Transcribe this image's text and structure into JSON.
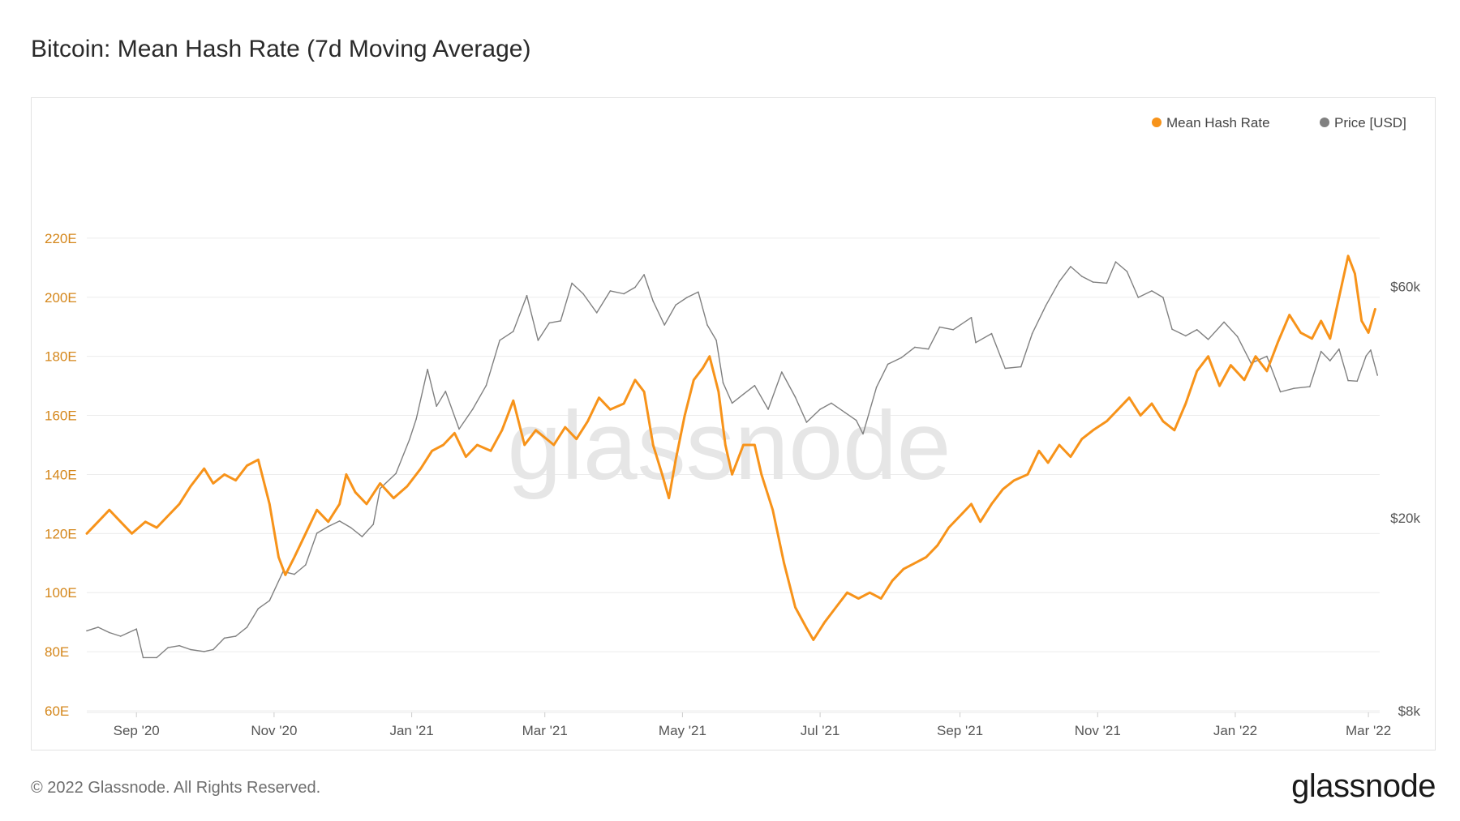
{
  "title": "Bitcoin: Mean Hash Rate (7d Moving Average)",
  "footer": {
    "copyright": "© 2022 Glassnode. All Rights Reserved.",
    "logo": "glassnode"
  },
  "watermark": "glassnode",
  "colors": {
    "hash_rate": "#f7931a",
    "price": "#808080",
    "grid": "#ececec",
    "left_axis_text": "#d4861a"
  },
  "chart_data": {
    "type": "line",
    "legend": [
      {
        "name": "Mean Hash Rate",
        "color": "#f7931a"
      },
      {
        "name": "Price [USD]",
        "color": "#808080"
      }
    ],
    "legend_position": "top-right",
    "grid": true,
    "x_range": [
      "2020-08-10",
      "2022-03-06"
    ],
    "x_ticks": [
      {
        "label": "Sep '20",
        "date": "2020-09-01"
      },
      {
        "label": "Nov '20",
        "date": "2020-11-01"
      },
      {
        "label": "Jan '21",
        "date": "2021-01-01"
      },
      {
        "label": "Mar '21",
        "date": "2021-03-01"
      },
      {
        "label": "May '21",
        "date": "2021-05-01"
      },
      {
        "label": "Jul '21",
        "date": "2021-07-01"
      },
      {
        "label": "Sep '21",
        "date": "2021-09-01"
      },
      {
        "label": "Nov '21",
        "date": "2021-11-01"
      },
      {
        "label": "Jan '22",
        "date": "2022-01-01"
      },
      {
        "label": "Mar '22",
        "date": "2022-03-01"
      }
    ],
    "y_left": {
      "unit": "EH/s",
      "range": [
        60,
        240
      ],
      "ticks": [
        {
          "label": "60E",
          "value": 60
        },
        {
          "label": "80E",
          "value": 80
        },
        {
          "label": "100E",
          "value": 100
        },
        {
          "label": "120E",
          "value": 120
        },
        {
          "label": "140E",
          "value": 140
        },
        {
          "label": "160E",
          "value": 160
        },
        {
          "label": "180E",
          "value": 180
        },
        {
          "label": "200E",
          "value": 200
        },
        {
          "label": "220E",
          "value": 220
        }
      ]
    },
    "y_right": {
      "scale": "log",
      "range": [
        8000,
        100000
      ],
      "ticks": [
        {
          "label": "$8k",
          "value": 8000
        },
        {
          "label": "$20k",
          "value": 20000
        },
        {
          "label": "$60k",
          "value": 60000
        }
      ]
    },
    "series": [
      {
        "name": "Mean Hash Rate",
        "axis": "left",
        "points": [
          [
            "2020-08-10",
            120
          ],
          [
            "2020-08-15",
            124
          ],
          [
            "2020-08-20",
            128
          ],
          [
            "2020-08-25",
            124
          ],
          [
            "2020-08-30",
            120
          ],
          [
            "2020-09-05",
            124
          ],
          [
            "2020-09-10",
            122
          ],
          [
            "2020-09-15",
            126
          ],
          [
            "2020-09-20",
            130
          ],
          [
            "2020-09-25",
            136
          ],
          [
            "2020-10-01",
            142
          ],
          [
            "2020-10-05",
            137
          ],
          [
            "2020-10-10",
            140
          ],
          [
            "2020-10-15",
            138
          ],
          [
            "2020-10-20",
            143
          ],
          [
            "2020-10-25",
            145
          ],
          [
            "2020-10-30",
            130
          ],
          [
            "2020-11-03",
            112
          ],
          [
            "2020-11-06",
            106
          ],
          [
            "2020-11-10",
            112
          ],
          [
            "2020-11-15",
            120
          ],
          [
            "2020-11-20",
            128
          ],
          [
            "2020-11-25",
            124
          ],
          [
            "2020-11-30",
            130
          ],
          [
            "2020-12-03",
            140
          ],
          [
            "2020-12-07",
            134
          ],
          [
            "2020-12-12",
            130
          ],
          [
            "2020-12-18",
            137
          ],
          [
            "2020-12-24",
            132
          ],
          [
            "2020-12-30",
            136
          ],
          [
            "2021-01-05",
            142
          ],
          [
            "2021-01-10",
            148
          ],
          [
            "2021-01-15",
            150
          ],
          [
            "2021-01-20",
            154
          ],
          [
            "2021-01-25",
            146
          ],
          [
            "2021-01-30",
            150
          ],
          [
            "2021-02-05",
            148
          ],
          [
            "2021-02-10",
            155
          ],
          [
            "2021-02-15",
            165
          ],
          [
            "2021-02-20",
            150
          ],
          [
            "2021-02-25",
            155
          ],
          [
            "2021-03-05",
            150
          ],
          [
            "2021-03-10",
            156
          ],
          [
            "2021-03-15",
            152
          ],
          [
            "2021-03-20",
            158
          ],
          [
            "2021-03-25",
            166
          ],
          [
            "2021-03-30",
            162
          ],
          [
            "2021-04-05",
            164
          ],
          [
            "2021-04-10",
            172
          ],
          [
            "2021-04-14",
            168
          ],
          [
            "2021-04-18",
            150
          ],
          [
            "2021-04-22",
            140
          ],
          [
            "2021-04-25",
            132
          ],
          [
            "2021-04-28",
            145
          ],
          [
            "2021-05-02",
            160
          ],
          [
            "2021-05-06",
            172
          ],
          [
            "2021-05-10",
            176
          ],
          [
            "2021-05-13",
            180
          ],
          [
            "2021-05-17",
            168
          ],
          [
            "2021-05-20",
            150
          ],
          [
            "2021-05-23",
            140
          ],
          [
            "2021-05-28",
            150
          ],
          [
            "2021-06-02",
            150
          ],
          [
            "2021-06-05",
            140
          ],
          [
            "2021-06-10",
            128
          ],
          [
            "2021-06-15",
            110
          ],
          [
            "2021-06-20",
            95
          ],
          [
            "2021-06-25",
            88
          ],
          [
            "2021-06-28",
            84
          ],
          [
            "2021-07-03",
            90
          ],
          [
            "2021-07-08",
            95
          ],
          [
            "2021-07-13",
            100
          ],
          [
            "2021-07-18",
            98
          ],
          [
            "2021-07-23",
            100
          ],
          [
            "2021-07-28",
            98
          ],
          [
            "2021-08-02",
            104
          ],
          [
            "2021-08-07",
            108
          ],
          [
            "2021-08-12",
            110
          ],
          [
            "2021-08-17",
            112
          ],
          [
            "2021-08-22",
            116
          ],
          [
            "2021-08-27",
            122
          ],
          [
            "2021-09-01",
            126
          ],
          [
            "2021-09-06",
            130
          ],
          [
            "2021-09-10",
            124
          ],
          [
            "2021-09-15",
            130
          ],
          [
            "2021-09-20",
            135
          ],
          [
            "2021-09-25",
            138
          ],
          [
            "2021-10-01",
            140
          ],
          [
            "2021-10-06",
            148
          ],
          [
            "2021-10-10",
            144
          ],
          [
            "2021-10-15",
            150
          ],
          [
            "2021-10-20",
            146
          ],
          [
            "2021-10-25",
            152
          ],
          [
            "2021-10-30",
            155
          ],
          [
            "2021-11-05",
            158
          ],
          [
            "2021-11-10",
            162
          ],
          [
            "2021-11-15",
            166
          ],
          [
            "2021-11-20",
            160
          ],
          [
            "2021-11-25",
            164
          ],
          [
            "2021-11-30",
            158
          ],
          [
            "2021-12-05",
            155
          ],
          [
            "2021-12-10",
            164
          ],
          [
            "2021-12-15",
            175
          ],
          [
            "2021-12-20",
            180
          ],
          [
            "2021-12-25",
            170
          ],
          [
            "2021-12-30",
            177
          ],
          [
            "2022-01-05",
            172
          ],
          [
            "2022-01-10",
            180
          ],
          [
            "2022-01-15",
            175
          ],
          [
            "2022-01-20",
            185
          ],
          [
            "2022-01-25",
            194
          ],
          [
            "2022-01-30",
            188
          ],
          [
            "2022-02-04",
            186
          ],
          [
            "2022-02-08",
            192
          ],
          [
            "2022-02-12",
            186
          ],
          [
            "2022-02-16",
            200
          ],
          [
            "2022-02-20",
            214
          ],
          [
            "2022-02-23",
            208
          ],
          [
            "2022-02-26",
            192
          ],
          [
            "2022-03-01",
            188
          ],
          [
            "2022-03-04",
            196
          ]
        ]
      },
      {
        "name": "Price [USD]",
        "axis": "right",
        "points": [
          [
            "2020-08-10",
            11700
          ],
          [
            "2020-08-15",
            11900
          ],
          [
            "2020-08-20",
            11600
          ],
          [
            "2020-08-25",
            11400
          ],
          [
            "2020-09-01",
            11800
          ],
          [
            "2020-09-04",
            10300
          ],
          [
            "2020-09-10",
            10300
          ],
          [
            "2020-09-15",
            10800
          ],
          [
            "2020-09-20",
            10900
          ],
          [
            "2020-09-25",
            10700
          ],
          [
            "2020-10-01",
            10600
          ],
          [
            "2020-10-05",
            10700
          ],
          [
            "2020-10-10",
            11300
          ],
          [
            "2020-10-15",
            11400
          ],
          [
            "2020-10-20",
            11900
          ],
          [
            "2020-10-25",
            13000
          ],
          [
            "2020-10-30",
            13500
          ],
          [
            "2020-11-05",
            15500
          ],
          [
            "2020-11-10",
            15300
          ],
          [
            "2020-11-15",
            16000
          ],
          [
            "2020-11-20",
            18600
          ],
          [
            "2020-11-25",
            19200
          ],
          [
            "2020-11-30",
            19700
          ],
          [
            "2020-12-05",
            19100
          ],
          [
            "2020-12-10",
            18300
          ],
          [
            "2020-12-15",
            19400
          ],
          [
            "2020-12-18",
            23000
          ],
          [
            "2020-12-25",
            24700
          ],
          [
            "2020-12-31",
            29000
          ],
          [
            "2021-01-03",
            32000
          ],
          [
            "2021-01-08",
            40500
          ],
          [
            "2021-01-12",
            34000
          ],
          [
            "2021-01-16",
            36500
          ],
          [
            "2021-01-22",
            30500
          ],
          [
            "2021-01-28",
            33500
          ],
          [
            "2021-02-03",
            37500
          ],
          [
            "2021-02-09",
            46500
          ],
          [
            "2021-02-15",
            48500
          ],
          [
            "2021-02-21",
            57500
          ],
          [
            "2021-02-26",
            46500
          ],
          [
            "2021-03-03",
            50500
          ],
          [
            "2021-03-08",
            51000
          ],
          [
            "2021-03-13",
            61000
          ],
          [
            "2021-03-18",
            58000
          ],
          [
            "2021-03-24",
            53000
          ],
          [
            "2021-03-30",
            58800
          ],
          [
            "2021-04-05",
            58000
          ],
          [
            "2021-04-10",
            59800
          ],
          [
            "2021-04-14",
            63500
          ],
          [
            "2021-04-18",
            56000
          ],
          [
            "2021-04-23",
            50000
          ],
          [
            "2021-04-28",
            55000
          ],
          [
            "2021-05-03",
            57000
          ],
          [
            "2021-05-08",
            58500
          ],
          [
            "2021-05-12",
            50000
          ],
          [
            "2021-05-16",
            46500
          ],
          [
            "2021-05-19",
            38000
          ],
          [
            "2021-05-23",
            34500
          ],
          [
            "2021-05-28",
            36000
          ],
          [
            "2021-06-02",
            37500
          ],
          [
            "2021-06-08",
            33500
          ],
          [
            "2021-06-14",
            40000
          ],
          [
            "2021-06-20",
            35500
          ],
          [
            "2021-06-25",
            31500
          ],
          [
            "2021-07-01",
            33500
          ],
          [
            "2021-07-06",
            34500
          ],
          [
            "2021-07-12",
            33000
          ],
          [
            "2021-07-17",
            31800
          ],
          [
            "2021-07-20",
            29800
          ],
          [
            "2021-07-26",
            37200
          ],
          [
            "2021-07-31",
            41500
          ],
          [
            "2021-08-06",
            42800
          ],
          [
            "2021-08-12",
            45000
          ],
          [
            "2021-08-18",
            44600
          ],
          [
            "2021-08-23",
            49500
          ],
          [
            "2021-08-29",
            48900
          ],
          [
            "2021-09-06",
            51800
          ],
          [
            "2021-09-08",
            46000
          ],
          [
            "2021-09-15",
            48000
          ],
          [
            "2021-09-21",
            40700
          ],
          [
            "2021-09-28",
            41000
          ],
          [
            "2021-10-03",
            48000
          ],
          [
            "2021-10-09",
            54800
          ],
          [
            "2021-10-15",
            61500
          ],
          [
            "2021-10-20",
            66000
          ],
          [
            "2021-10-25",
            63000
          ],
          [
            "2021-10-30",
            61300
          ],
          [
            "2021-11-05",
            61000
          ],
          [
            "2021-11-09",
            67500
          ],
          [
            "2021-11-14",
            64500
          ],
          [
            "2021-11-19",
            57000
          ],
          [
            "2021-11-25",
            58800
          ],
          [
            "2021-11-30",
            57000
          ],
          [
            "2021-12-04",
            49000
          ],
          [
            "2021-12-10",
            47500
          ],
          [
            "2021-12-15",
            48900
          ],
          [
            "2021-12-20",
            46700
          ],
          [
            "2021-12-27",
            50700
          ],
          [
            "2022-01-02",
            47300
          ],
          [
            "2022-01-08",
            41700
          ],
          [
            "2022-01-15",
            43100
          ],
          [
            "2022-01-21",
            36400
          ],
          [
            "2022-01-27",
            37000
          ],
          [
            "2022-02-03",
            37300
          ],
          [
            "2022-02-08",
            44100
          ],
          [
            "2022-02-12",
            42200
          ],
          [
            "2022-02-16",
            44600
          ],
          [
            "2022-02-20",
            38400
          ],
          [
            "2022-02-24",
            38300
          ],
          [
            "2022-02-28",
            43200
          ],
          [
            "2022-03-02",
            44400
          ],
          [
            "2022-03-05",
            39400
          ]
        ]
      }
    ]
  }
}
